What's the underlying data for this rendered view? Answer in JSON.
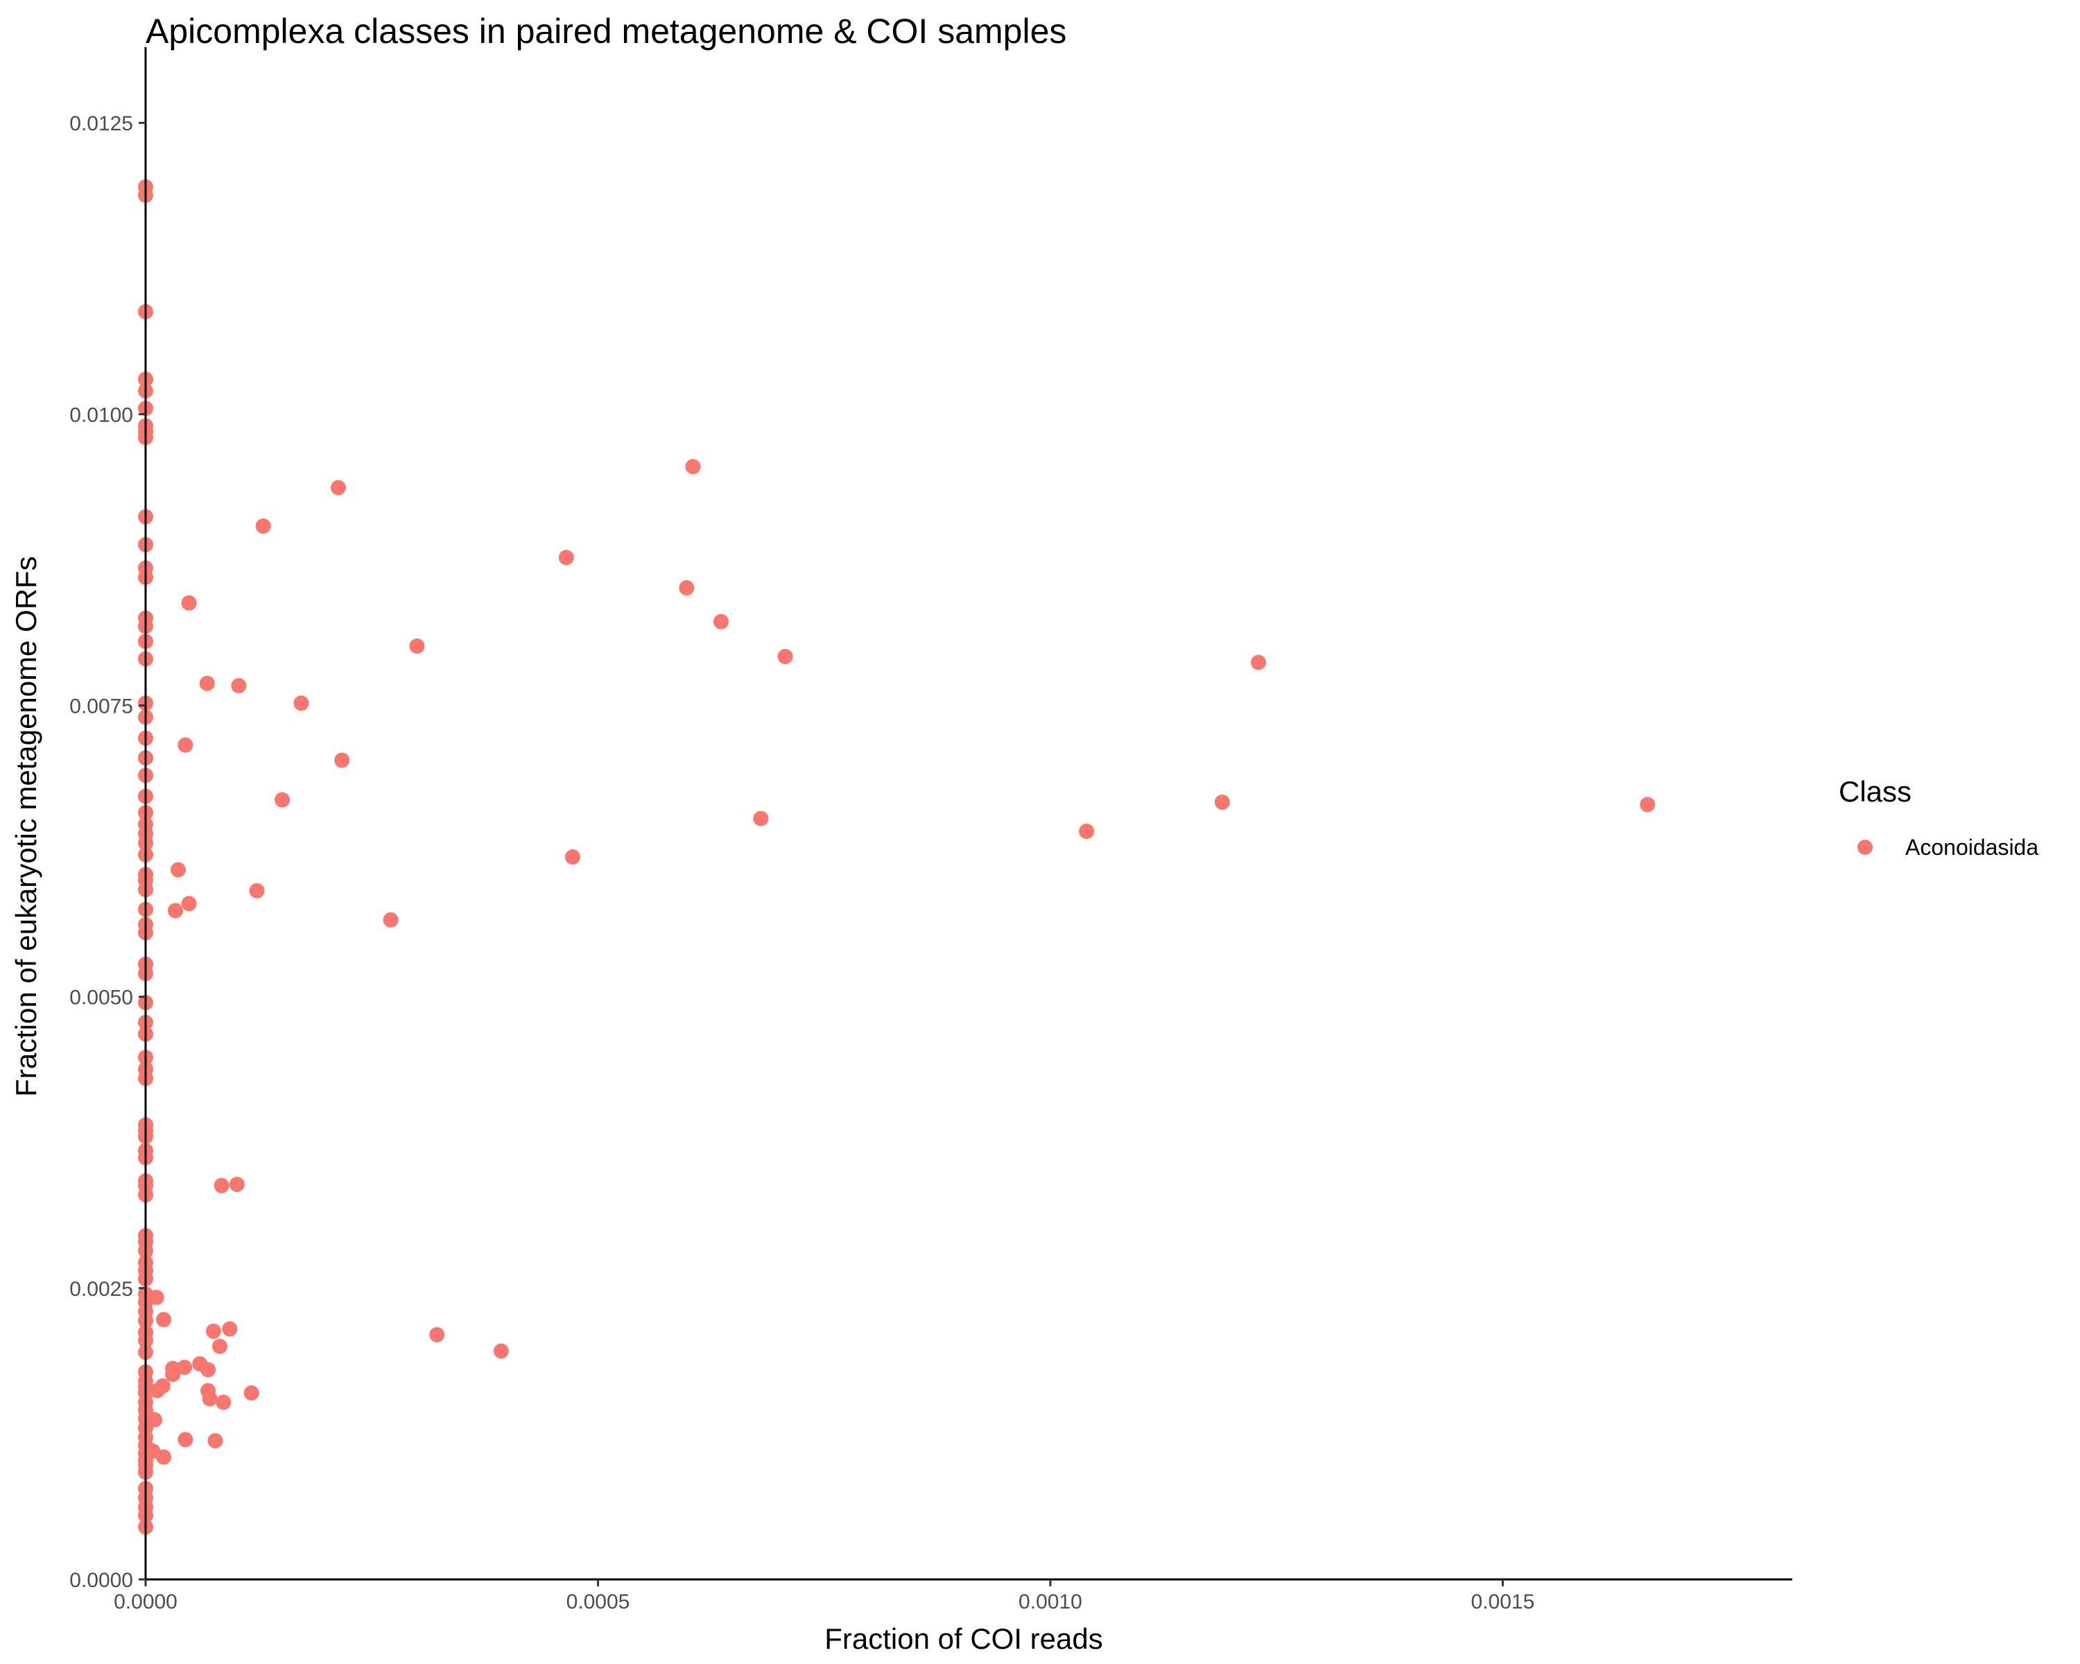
{
  "chart_data": {
    "type": "scatter",
    "title": "Apicomplexa classes in paired metagenome & COI samples",
    "xlabel": "Fraction of COI reads",
    "ylabel": "Fraction of eukaryotic metagenome ORFs",
    "xlim": [
      0,
      0.00182
    ],
    "ylim": [
      0,
      0.01315
    ],
    "xticks": [
      "0.0000",
      "0.0005",
      "0.0010",
      "0.0015"
    ],
    "xtick_values": [
      0,
      0.0005,
      0.001,
      0.0015
    ],
    "yticks": [
      "0.0000",
      "0.0025",
      "0.0050",
      "0.0075",
      "0.0100",
      "0.0125"
    ],
    "ytick_values": [
      0,
      0.0025,
      0.005,
      0.0075,
      0.01,
      0.0125
    ],
    "grid": false,
    "legend": {
      "title": "Class",
      "position": "right"
    },
    "series": [
      {
        "name": "Aconoidasida",
        "color": "#F8766D",
        "points": [
          [
            0,
            0.01195
          ],
          [
            0,
            0.01188
          ],
          [
            0,
            0.01088
          ],
          [
            0,
            0.0103
          ],
          [
            0,
            0.0102
          ],
          [
            0,
            0.01005
          ],
          [
            0,
            0.0099
          ],
          [
            0,
            0.00985
          ],
          [
            0,
            0.0098
          ],
          [
            0,
            0.00912
          ],
          [
            0,
            0.00888
          ],
          [
            0,
            0.00868
          ],
          [
            0,
            0.0086
          ],
          [
            0,
            0.00825
          ],
          [
            0,
            0.00818
          ],
          [
            0,
            0.00805
          ],
          [
            0,
            0.0079
          ],
          [
            0,
            0.00752
          ],
          [
            0,
            0.0074
          ],
          [
            0,
            0.00722
          ],
          [
            0,
            0.00705
          ],
          [
            0,
            0.0069
          ],
          [
            0,
            0.00672
          ],
          [
            0,
            0.00658
          ],
          [
            0,
            0.00648
          ],
          [
            0,
            0.0064
          ],
          [
            0,
            0.00632
          ],
          [
            0,
            0.00622
          ],
          [
            0,
            0.00605
          ],
          [
            0,
            0.006
          ],
          [
            0,
            0.00592
          ],
          [
            0,
            0.00575
          ],
          [
            0,
            0.00562
          ],
          [
            0,
            0.00555
          ],
          [
            0,
            0.00528
          ],
          [
            0,
            0.0052
          ],
          [
            0,
            0.00495
          ],
          [
            0,
            0.00478
          ],
          [
            0,
            0.00468
          ],
          [
            0,
            0.00448
          ],
          [
            0,
            0.00438
          ],
          [
            0,
            0.0043
          ],
          [
            0,
            0.0039
          ],
          [
            0,
            0.00385
          ],
          [
            0,
            0.0038
          ],
          [
            0,
            0.00368
          ],
          [
            0,
            0.00362
          ],
          [
            0,
            0.00342
          ],
          [
            0,
            0.00338
          ],
          [
            0,
            0.0033
          ],
          [
            0,
            0.00295
          ],
          [
            0,
            0.0029
          ],
          [
            0,
            0.00282
          ],
          [
            0,
            0.00272
          ],
          [
            0,
            0.00265
          ],
          [
            0,
            0.00258
          ],
          [
            0,
            0.00245
          ],
          [
            0,
            0.00238
          ],
          [
            0,
            0.0023
          ],
          [
            0,
            0.00222
          ],
          [
            0,
            0.00212
          ],
          [
            0,
            0.00205
          ],
          [
            0,
            0.00195
          ],
          [
            0,
            0.00178
          ],
          [
            0,
            0.0017
          ],
          [
            0,
            0.00165
          ],
          [
            0,
            0.0016
          ],
          [
            0,
            0.00152
          ],
          [
            0,
            0.00145
          ],
          [
            0,
            0.00138
          ],
          [
            0,
            0.0013
          ],
          [
            0,
            0.00122
          ],
          [
            0,
            0.00115
          ],
          [
            0,
            0.00108
          ],
          [
            0,
            0.00102
          ],
          [
            0,
            0.00098
          ],
          [
            0,
            0.00092
          ],
          [
            0,
            0.00078
          ],
          [
            0,
            0.0007
          ],
          [
            0,
            0.00062
          ],
          [
            0,
            0.00055
          ],
          [
            0,
            0.00045
          ],
          [
            0.000605,
            0.00955
          ],
          [
            0.000213,
            0.00937
          ],
          [
            0.00013,
            0.00904
          ],
          [
            0.000465,
            0.00877
          ],
          [
            0.000598,
            0.00851
          ],
          [
            4.8e-05,
            0.00838
          ],
          [
            0.000636,
            0.00822
          ],
          [
            0.0003,
            0.00801
          ],
          [
            0.000707,
            0.00792
          ],
          [
            0.00123,
            0.00787
          ],
          [
            6.8e-05,
            0.00769
          ],
          [
            0.000103,
            0.00767
          ],
          [
            0.000172,
            0.00752
          ],
          [
            4.4e-05,
            0.00716
          ],
          [
            0.000217,
            0.00703
          ],
          [
            0.000151,
            0.00669
          ],
          [
            0.00119,
            0.00667
          ],
          [
            0.00166,
            0.00665
          ],
          [
            0.00068,
            0.00653
          ],
          [
            0.00104,
            0.00642
          ],
          [
            0.000472,
            0.0062
          ],
          [
            3.6e-05,
            0.00609
          ],
          [
            0.000123,
            0.00591
          ],
          [
            4.8e-05,
            0.0058
          ],
          [
            3.3e-05,
            0.00574
          ],
          [
            0.000271,
            0.00566
          ],
          [
            8.4e-05,
            0.00338
          ],
          [
            0.000101,
            0.00339
          ],
          [
            1.2e-05,
            0.00242
          ],
          [
            2e-05,
            0.00223
          ],
          [
            9.3e-05,
            0.00215
          ],
          [
            7.5e-05,
            0.00213
          ],
          [
            0.000322,
            0.0021
          ],
          [
            8.2e-05,
            0.002
          ],
          [
            0.000393,
            0.00196
          ],
          [
            6e-05,
            0.00185
          ],
          [
            4.3e-05,
            0.00182
          ],
          [
            3e-05,
            0.00181
          ],
          [
            6.9e-05,
            0.0018
          ],
          [
            3e-05,
            0.00176
          ],
          [
            1.9e-05,
            0.00166
          ],
          [
            1.3e-05,
            0.00162
          ],
          [
            6.9e-05,
            0.00162
          ],
          [
            0.000117,
            0.0016
          ],
          [
            7.1e-05,
            0.00155
          ],
          [
            8.6e-05,
            0.00152
          ],
          [
            1e-05,
            0.00137
          ],
          [
            4.4e-05,
            0.0012
          ],
          [
            7.7e-05,
            0.00119
          ],
          [
            8e-06,
            0.0011
          ],
          [
            2e-05,
            0.00105
          ]
        ]
      }
    ]
  }
}
